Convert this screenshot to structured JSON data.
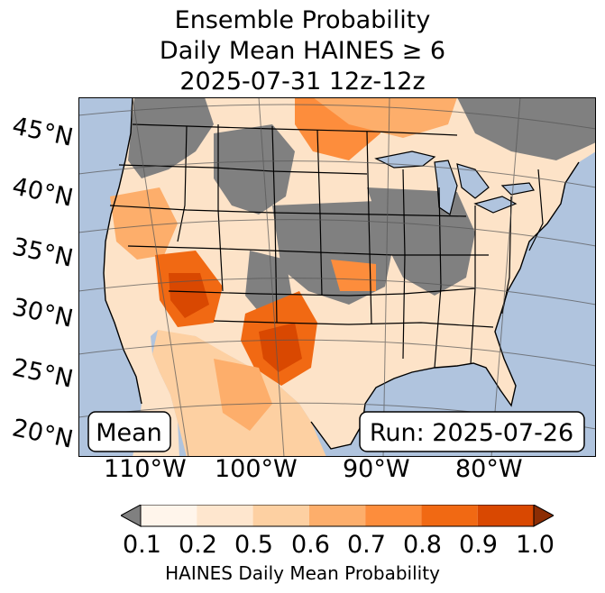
{
  "title": {
    "line1": "Ensemble Probability",
    "line2": "Daily Mean HAINES ≥ 6",
    "line3": "2025-07-31 12z-12z"
  },
  "map": {
    "lat_labels": [
      "45°N",
      "40°N",
      "35°N",
      "30°N",
      "25°N",
      "20°N"
    ],
    "lon_labels": [
      "110°W",
      "100°W",
      "90°W",
      "80°W"
    ],
    "mean_box": "Mean",
    "run_box": "Run: 2025-07-26",
    "colors": {
      "ocean": "#b0c4de",
      "no_data_gray": "#808080",
      "background_land": "#ffffff"
    },
    "high_probability_regions": [
      "Southwest deserts",
      "West Texas / New Mexico",
      "Northern Plains",
      "California"
    ]
  },
  "colorbar": {
    "ticks": [
      "0.1",
      "0.2",
      "0.5",
      "0.6",
      "0.7",
      "0.8",
      "0.9",
      "1.0"
    ],
    "colors": [
      "#fff5eb",
      "#fee6ce",
      "#fdd0a2",
      "#fdae6b",
      "#fd8d3c",
      "#f16913",
      "#d94801",
      "#8c2d04"
    ],
    "under_color": "#808080",
    "label": "HAINES Daily Mean Probability"
  }
}
